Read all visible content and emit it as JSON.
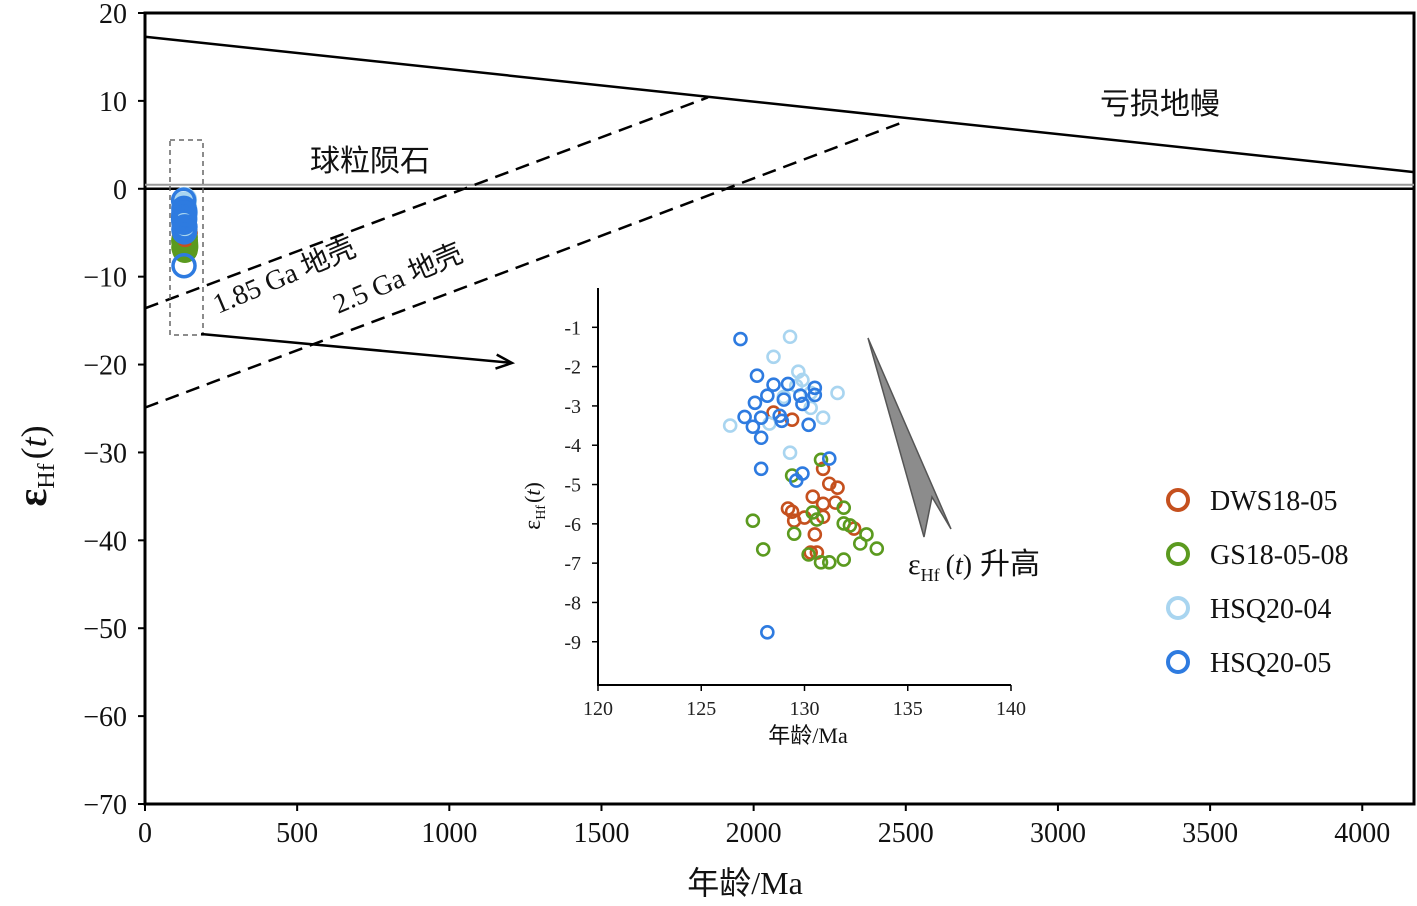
{
  "chart_data": {
    "type": "scatter",
    "main": {
      "xlabel": "年龄/Ma",
      "ylabel": {
        "symbol": "ε",
        "subscript": "Hf",
        "open": "(",
        "var": "t",
        "close": ")"
      },
      "xlim": [
        0,
        4170
      ],
      "ylim": [
        -70,
        20
      ],
      "grid": false,
      "xticks": [
        0,
        500,
        1000,
        1500,
        2000,
        2500,
        3000,
        3500,
        4000
      ],
      "xtick_labels": [
        "0",
        "500",
        "1000",
        "1500",
        "2000",
        "2500",
        "3000",
        "3500",
        "4000"
      ],
      "yticks": [
        20,
        10,
        0,
        -10,
        -20,
        -30,
        -40,
        -50,
        -60,
        -70
      ],
      "ytick_labels": [
        "20",
        "10",
        "0",
        "−10",
        "−20",
        "−30",
        "−40",
        "−50",
        "−60",
        "−70"
      ],
      "reference_lines": [
        {
          "name": "亏损地幔",
          "style": "solid",
          "points": [
            [
              0,
              17.3
            ],
            [
              4170,
              1.9
            ]
          ]
        },
        {
          "name": "球粒陨石",
          "style": "solid",
          "points": [
            [
              0,
              0
            ],
            [
              4170,
              0
            ]
          ]
        },
        {
          "name": "1.85 Ga 地壳",
          "style": "dashed",
          "points": [
            [
              0,
              -13.6
            ],
            [
              1850,
              10.4
            ]
          ]
        },
        {
          "name": "2.5 Ga 地壳",
          "style": "dashed",
          "points": [
            [
              0,
              -24.9
            ],
            [
              2500,
              7.7
            ]
          ]
        }
      ]
    },
    "inset": {
      "xlabel": "年龄/Ma",
      "ylabel": {
        "symbol": "ε",
        "subscript": "Hf",
        "open": "(",
        "var": "t",
        "close": ")"
      },
      "xlim": [
        120,
        140
      ],
      "ylim": [
        -10.1,
        0
      ],
      "xticks": [
        120,
        125,
        130,
        135,
        140
      ],
      "xtick_labels": [
        "120",
        "125",
        "130",
        "135",
        "140"
      ],
      "yticks": [
        -1,
        -2,
        -3,
        -4,
        -5,
        -6,
        -7,
        -8,
        -9
      ],
      "ytick_labels": [
        "-1",
        "-2",
        "-3",
        "-4",
        "-5",
        "-6",
        "-7",
        "-8",
        "-9"
      ],
      "annotation": {
        "symbol": "ε",
        "subscript": "Hf",
        "open": "(",
        "var": "t",
        "close": ")",
        "text": "升高"
      }
    },
    "legend": {
      "position": "right"
    },
    "series": [
      {
        "name": "DWS18-05",
        "color": "#c5501e",
        "points": [
          [
            128.5,
            -3.17
          ],
          [
            129.4,
            -3.35
          ],
          [
            130.9,
            -4.6
          ],
          [
            131.2,
            -4.98
          ],
          [
            131.6,
            -5.08
          ],
          [
            130.4,
            -5.31
          ],
          [
            129.2,
            -5.61
          ],
          [
            130.9,
            -5.49
          ],
          [
            131.5,
            -5.46
          ],
          [
            129.5,
            -5.92
          ],
          [
            130.0,
            -5.84
          ],
          [
            130.9,
            -5.82
          ],
          [
            130.5,
            -6.27
          ],
          [
            132.4,
            -6.12
          ],
          [
            130.3,
            -6.73
          ],
          [
            130.6,
            -6.73
          ],
          [
            129.4,
            -5.69
          ]
        ]
      },
      {
        "name": "GS18-05-08",
        "color": "#5b9a1f",
        "points": [
          [
            130.8,
            -4.37
          ],
          [
            129.4,
            -4.77
          ],
          [
            127.5,
            -5.92
          ],
          [
            129.5,
            -6.25
          ],
          [
            130.4,
            -5.71
          ],
          [
            130.6,
            -5.89
          ],
          [
            131.9,
            -5.59
          ],
          [
            131.9,
            -5.99
          ],
          [
            132.2,
            -6.04
          ],
          [
            133.0,
            -6.27
          ],
          [
            132.7,
            -6.5
          ],
          [
            133.5,
            -6.63
          ],
          [
            128.0,
            -6.65
          ],
          [
            130.2,
            -6.78
          ],
          [
            130.8,
            -6.98
          ],
          [
            131.2,
            -6.98
          ],
          [
            131.9,
            -6.91
          ]
        ]
      },
      {
        "name": "HSQ20-04",
        "color": "#a9d5f0",
        "points": [
          [
            129.3,
            -1.24
          ],
          [
            128.5,
            -1.75
          ],
          [
            129.7,
            -2.13
          ],
          [
            129.9,
            -2.34
          ],
          [
            129.6,
            -2.49
          ],
          [
            131.6,
            -2.67
          ],
          [
            130.3,
            -3.05
          ],
          [
            130.9,
            -3.3
          ],
          [
            128.3,
            -3.45
          ],
          [
            126.4,
            -3.5
          ],
          [
            129.3,
            -4.19
          ],
          [
            129.0,
            -2.77
          ],
          [
            130.3,
            -2.67
          ]
        ]
      },
      {
        "name": "HSQ20-05",
        "color": "#2e7be0",
        "points": [
          [
            126.9,
            -1.3
          ],
          [
            127.7,
            -2.23
          ],
          [
            128.5,
            -2.46
          ],
          [
            129.2,
            -2.44
          ],
          [
            130.5,
            -2.54
          ],
          [
            130.5,
            -2.72
          ],
          [
            129.8,
            -2.74
          ],
          [
            128.2,
            -2.74
          ],
          [
            127.6,
            -2.92
          ],
          [
            129.9,
            -2.95
          ],
          [
            129.0,
            -2.84
          ],
          [
            127.1,
            -3.28
          ],
          [
            127.9,
            -3.3
          ],
          [
            128.8,
            -3.25
          ],
          [
            127.5,
            -3.53
          ],
          [
            128.9,
            -3.38
          ],
          [
            130.2,
            -3.48
          ],
          [
            127.9,
            -3.81
          ],
          [
            131.2,
            -4.34
          ],
          [
            127.9,
            -4.6
          ],
          [
            129.9,
            -4.72
          ],
          [
            129.6,
            -4.9
          ],
          [
            128.2,
            -8.76
          ]
        ]
      }
    ]
  }
}
